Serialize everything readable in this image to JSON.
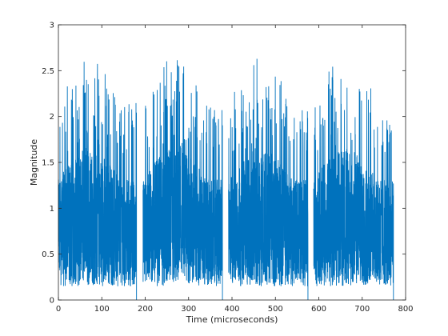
{
  "chart_data": {
    "type": "line",
    "title": "",
    "xlabel": "Time (microseconds)",
    "ylabel": "Magnitude",
    "xlim": [
      0,
      800
    ],
    "ylim": [
      0,
      3
    ],
    "xticks": [
      0,
      100,
      200,
      300,
      400,
      500,
      600,
      700,
      800
    ],
    "yticks": [
      0,
      0.5,
      1,
      1.5,
      2,
      2.5,
      3
    ],
    "ytick_labels": [
      "0",
      "0.5",
      "1",
      "1.5",
      "2",
      "2.5",
      "3"
    ],
    "grid": false,
    "legend": "none",
    "series": [
      {
        "color": "#0072BD",
        "description_free": true,
        "bursts": [
          {
            "x_start": 0,
            "x_end": 180
          },
          {
            "x_start": 195,
            "x_end": 378
          },
          {
            "x_start": 392,
            "x_end": 575
          },
          {
            "x_start": 588,
            "x_end": 772
          }
        ],
        "approx_range": [
          0.1,
          2.65
        ]
      }
    ]
  }
}
